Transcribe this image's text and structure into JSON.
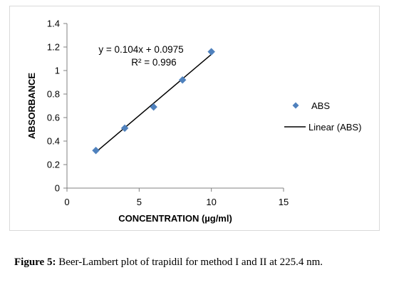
{
  "chart_data": {
    "type": "scatter",
    "xlabel": "CONCENTRATION (µg/ml)",
    "ylabel": "ABSORBANCE",
    "xlim": [
      0,
      15
    ],
    "ylim": [
      0,
      1.4
    ],
    "x_ticks": [
      "0",
      "5",
      "10",
      "15"
    ],
    "y_ticks": [
      "0",
      "0.2",
      "0.4",
      "0.6",
      "0.8",
      "1",
      "1.2",
      "1.4"
    ],
    "grid": false,
    "legend_position": "right",
    "series": [
      {
        "name": "ABS",
        "marker": "diamond",
        "color": "#4f81bd",
        "x": [
          2,
          4,
          6,
          8,
          10
        ],
        "y": [
          0.32,
          0.51,
          0.69,
          0.92,
          1.16
        ]
      }
    ],
    "trendline": {
      "name": "Linear (ABS)",
      "color": "#000000",
      "slope": 0.104,
      "intercept": 0.0975,
      "x_range": [
        2,
        10
      ],
      "equation": "y = 0.104x + 0.0975",
      "r2_label": "R² = 0.996"
    }
  },
  "caption": {
    "label": "Figure 5:",
    "text": " Beer-Lambert plot of trapidil for method I and II at 225.4 nm."
  }
}
